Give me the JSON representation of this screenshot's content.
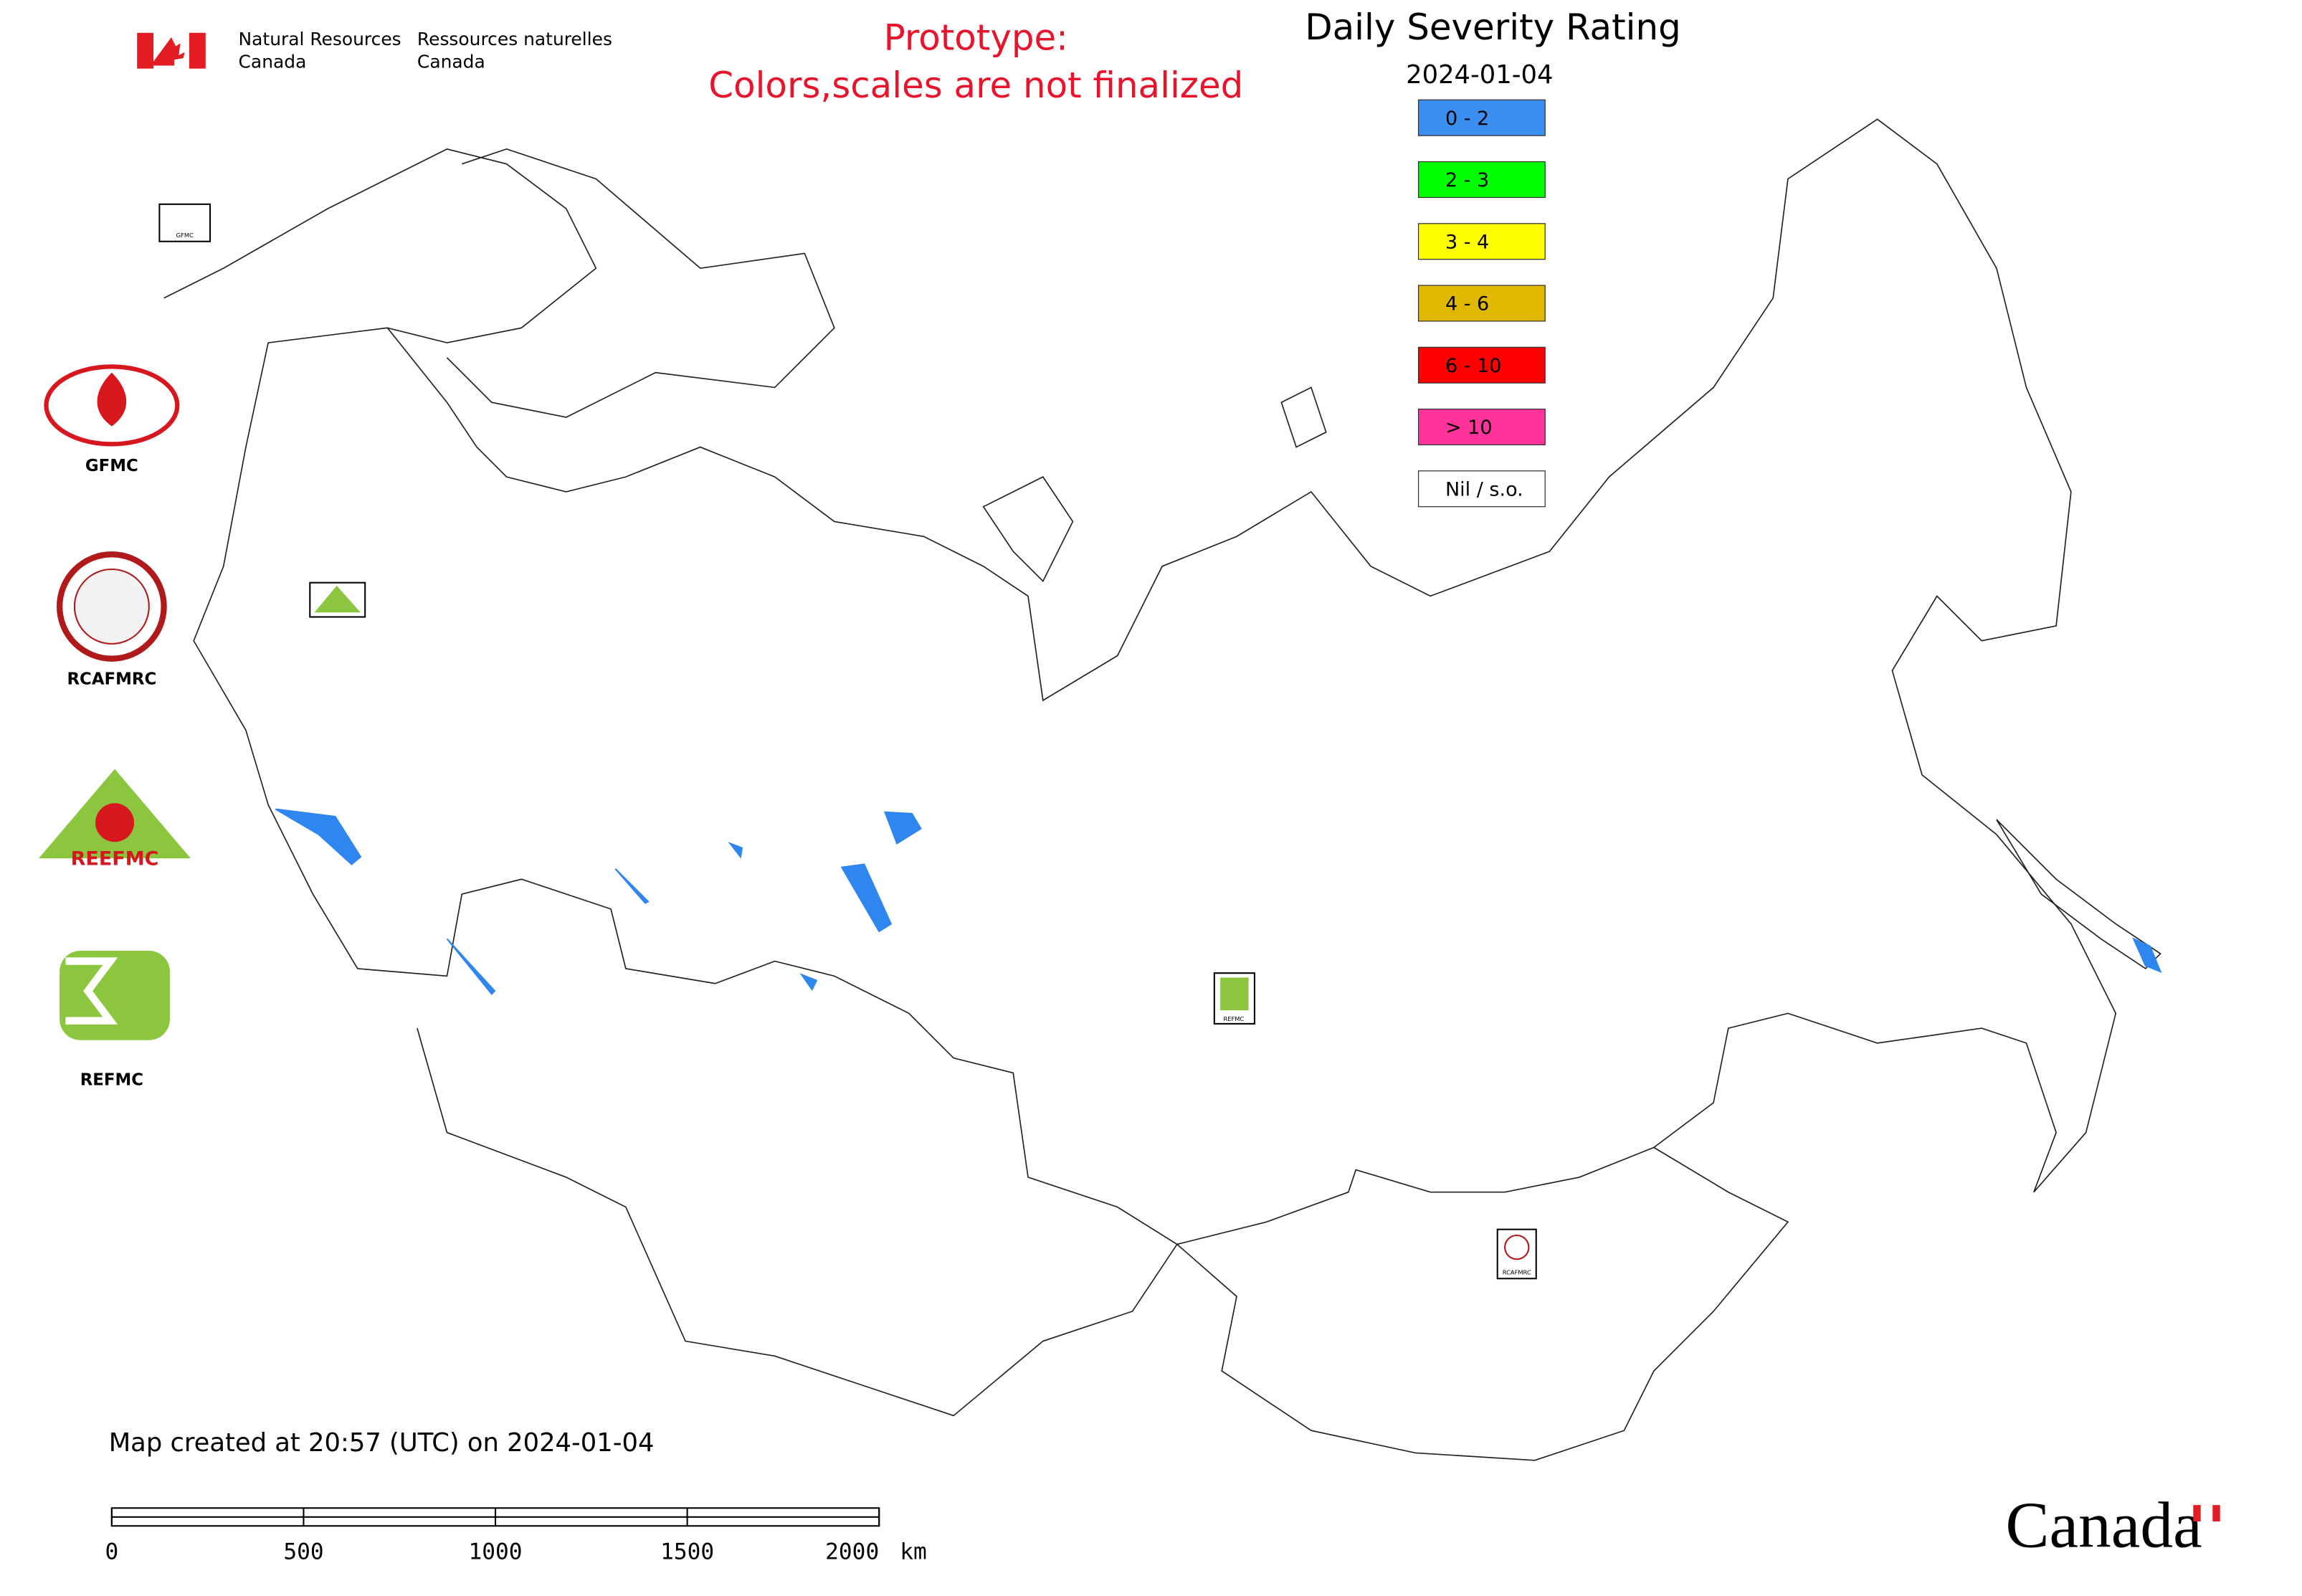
{
  "header": {
    "agency_en": [
      "Natural Resources",
      "Canada"
    ],
    "agency_fr": [
      "Ressources naturelles",
      "Canada"
    ],
    "notice": [
      "Prototype:",
      "Colors,scales are not finalized"
    ]
  },
  "legend": {
    "title": "Daily Severity Rating",
    "date": "2024-01-04",
    "items": [
      {
        "label": "0 - 2",
        "color": "#3a8ff0"
      },
      {
        "label": "2 - 3",
        "color": "#00ff00"
      },
      {
        "label": "3 - 4",
        "color": "#ffff00"
      },
      {
        "label": "4 - 6",
        "color": "#e0b800"
      },
      {
        "label": "6 - 10",
        "color": "#ff0000"
      },
      {
        "label": "> 10",
        "color": "#ff3399"
      },
      {
        "label": "Nil / s.o.",
        "color": "#ffffff"
      }
    ]
  },
  "logos": [
    "GFMC",
    "RCAFMRC",
    "REEFMC",
    "REFMC"
  ],
  "footer": {
    "created": "Map created at 20:57 (UTC) on 2024-01-04",
    "wordmark": "Canada"
  },
  "scale_bar": {
    "ticks": [
      0,
      500,
      1000,
      1500,
      2000
    ],
    "unit": "km"
  }
}
